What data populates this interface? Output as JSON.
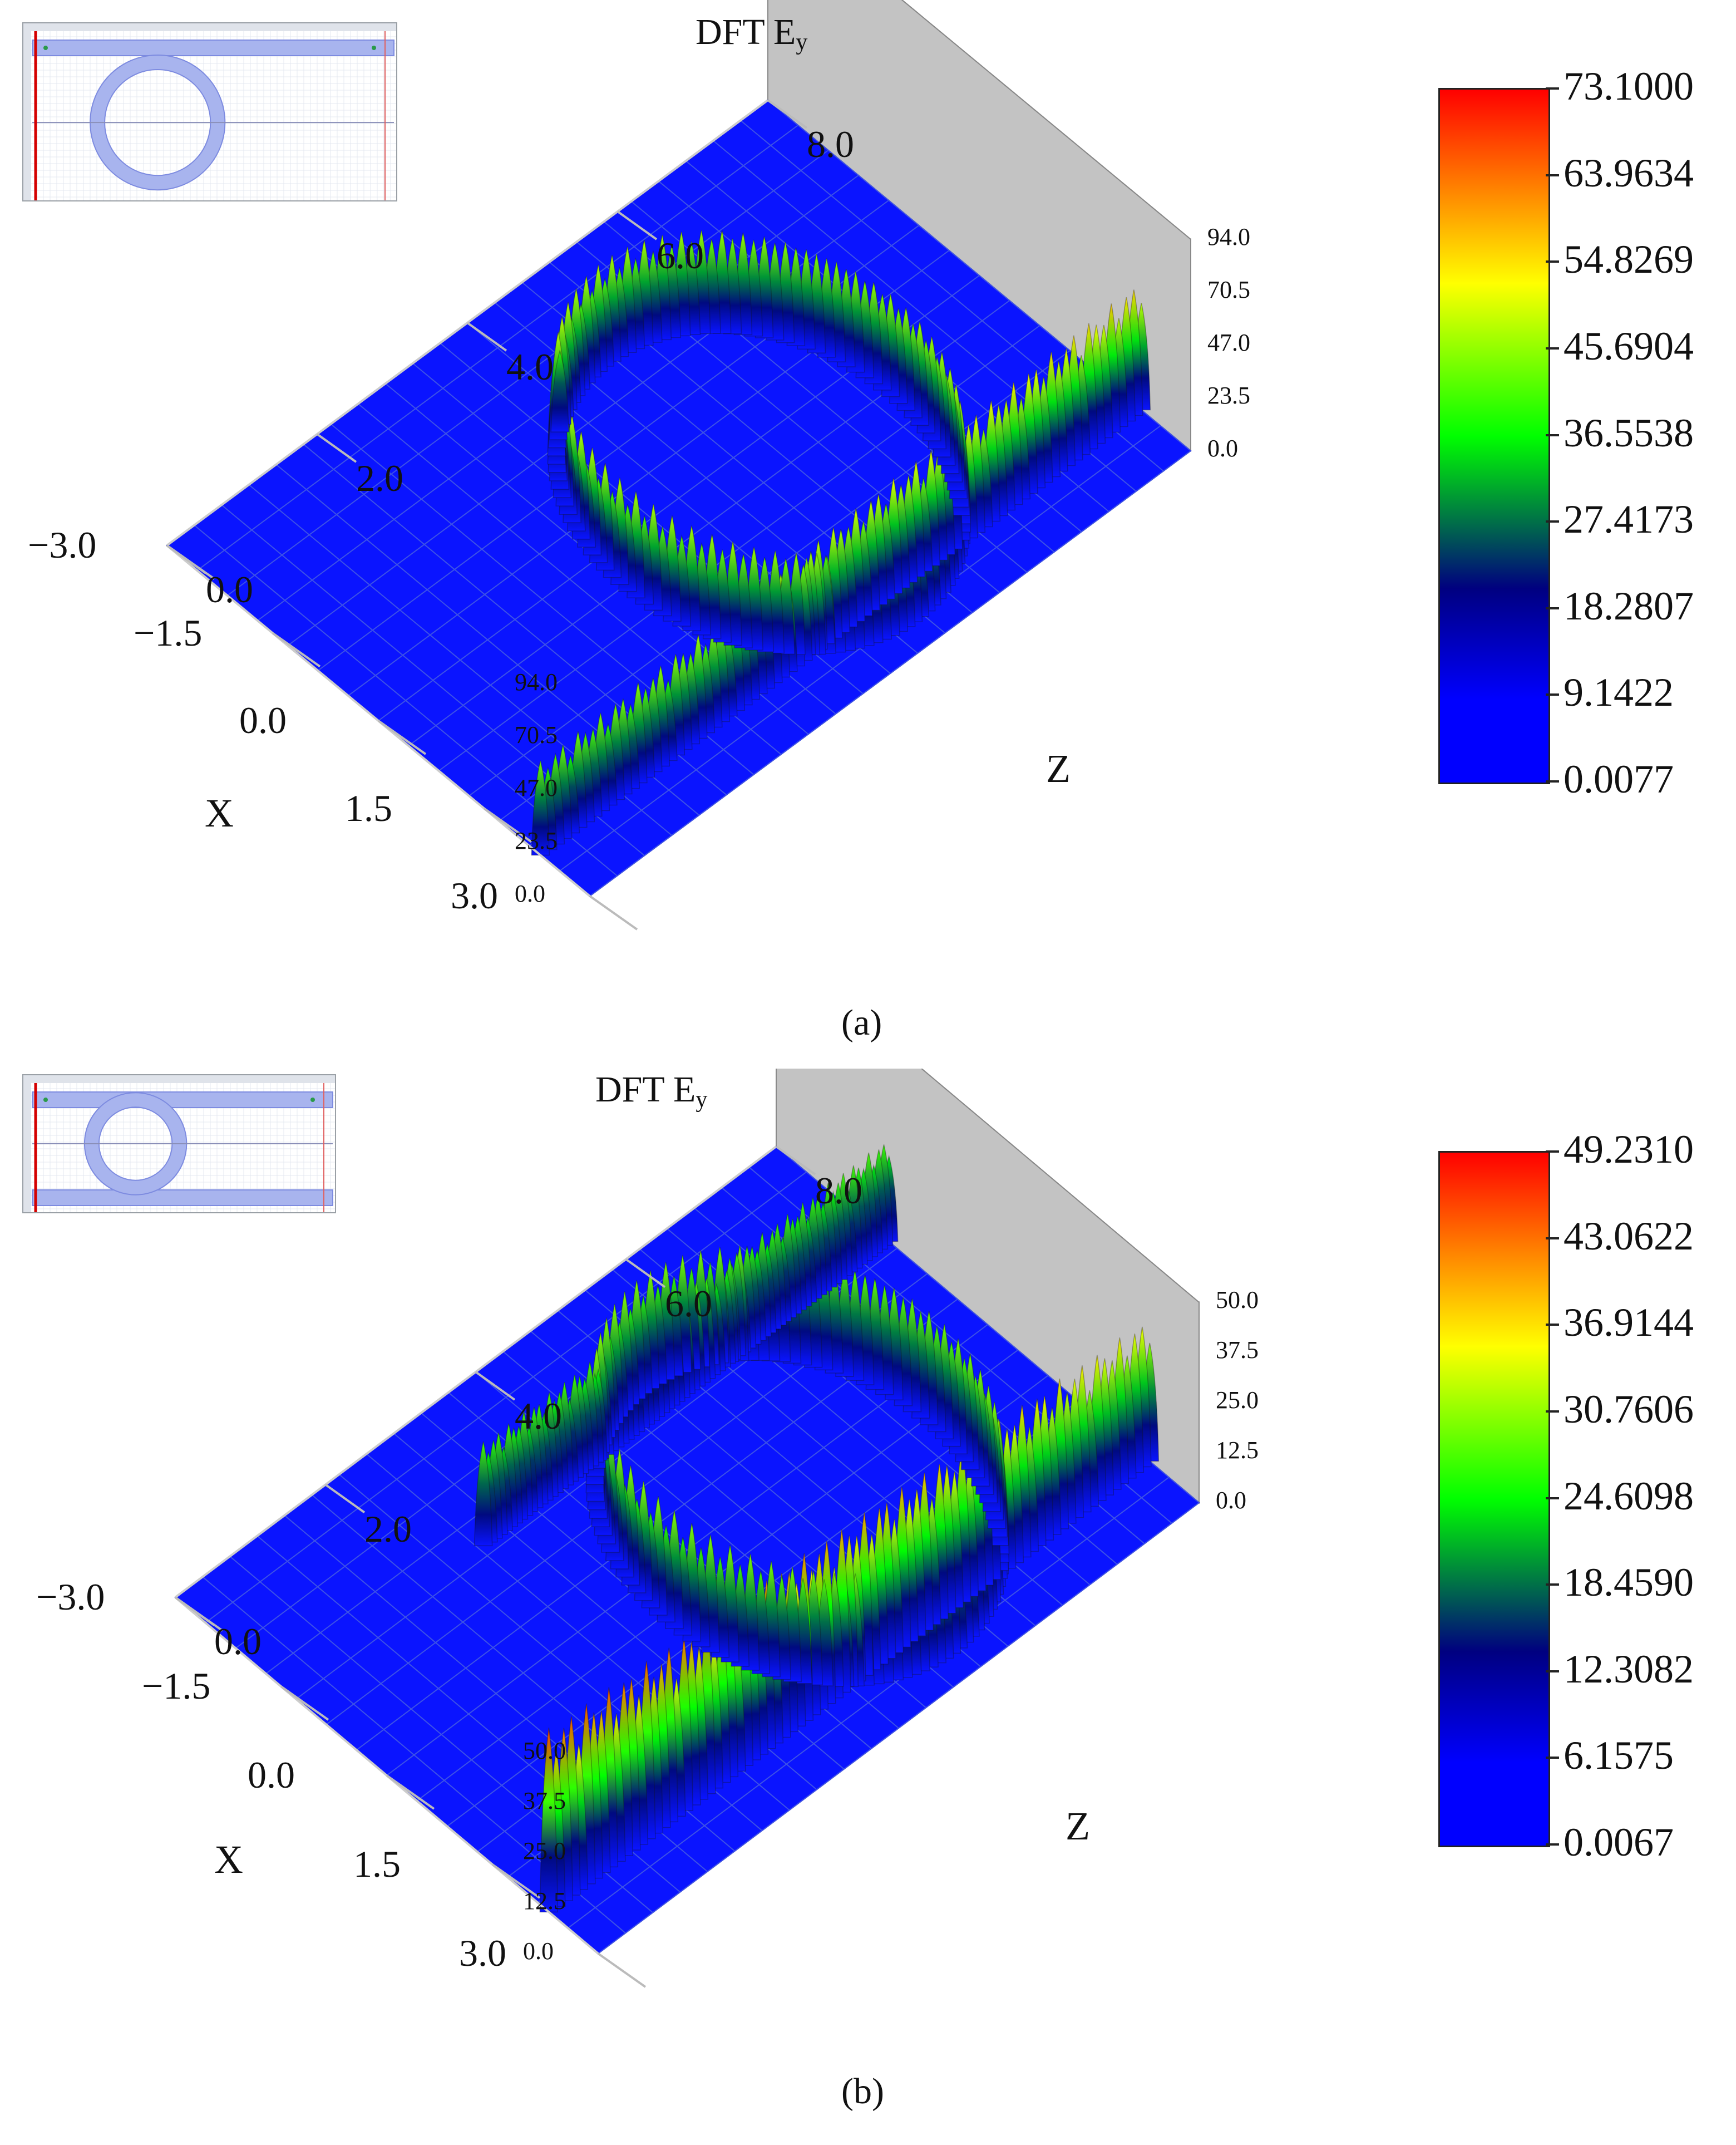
{
  "chart_data": [
    {
      "type": "surface3d",
      "panel_label": "(a)",
      "title_main": "DFT E",
      "title_sub": "y",
      "xlabel": "X",
      "zlabel": "Z",
      "x_ticks": [
        "3.0",
        "1.5",
        "0.0",
        "−1.5",
        "−3.0"
      ],
      "z_ticks": [
        "0.0",
        "2.0",
        "4.0",
        "6.0",
        "8.0"
      ],
      "v_ticks": [
        "0.0",
        "23.5",
        "47.0",
        "70.5",
        "94.0"
      ],
      "xlim": [
        -3.0,
        3.0
      ],
      "zlim": [
        0.0,
        8.0
      ],
      "vlim": [
        0.0,
        94.0
      ],
      "colorbar_ticks": [
        "73.1000",
        "63.9634",
        "54.8269",
        "45.6904",
        "36.5538",
        "27.4173",
        "18.2807",
        "9.1422",
        "0.0077"
      ],
      "colorbar_range": [
        0.0077,
        73.1
      ],
      "colormap": [
        "#0000ff",
        "#000080",
        "#00ff00",
        "#ffff00",
        "#ff0000"
      ],
      "waveguides": [
        {
          "x": 2.3,
          "z_start": 0.0,
          "z_end": 8.0,
          "peak": 42,
          "peak_end": 58
        }
      ],
      "ring": {
        "center_x": 0.5,
        "center_z": 4.6,
        "radius": 1.75,
        "peak": 48
      },
      "inset": {
        "rings": 1,
        "bus_waveguides": 1
      }
    },
    {
      "type": "surface3d",
      "panel_label": "(b)",
      "title_main": "DFT E",
      "title_sub": "y",
      "xlabel": "X",
      "zlabel": "Z",
      "x_ticks": [
        "3.0",
        "1.5",
        "0.0",
        "−1.5",
        "−3.0"
      ],
      "z_ticks": [
        "0.0",
        "2.0",
        "4.0",
        "6.0",
        "8.0"
      ],
      "v_ticks": [
        "0.0",
        "12.5",
        "25.0",
        "37.5",
        "50.0"
      ],
      "xlim": [
        -3.0,
        3.0
      ],
      "zlim": [
        0.0,
        8.0
      ],
      "vlim": [
        0.0,
        50.0
      ],
      "colorbar_ticks": [
        "49.2310",
        "43.0622",
        "36.9144",
        "30.7606",
        "24.6098",
        "18.4590",
        "12.3082",
        "6.1575",
        "0.0067"
      ],
      "colorbar_range": [
        0.0067,
        49.231
      ],
      "colormap": [
        "#0000ff",
        "#000080",
        "#00ff00",
        "#ffff00",
        "#ff0000"
      ],
      "waveguides": [
        {
          "x": 2.3,
          "z_start": 0.0,
          "z_end": 8.0,
          "peak": 46,
          "peak_end": 36
        },
        {
          "x": -1.4,
          "z_start": 2.6,
          "z_end": 8.0,
          "peak": 26,
          "peak_end": 26
        }
      ],
      "ring": {
        "center_x": 0.5,
        "center_z": 5.0,
        "radius": 1.75,
        "peak": 30
      },
      "inset": {
        "rings": 1,
        "bus_waveguides": 2
      }
    }
  ]
}
